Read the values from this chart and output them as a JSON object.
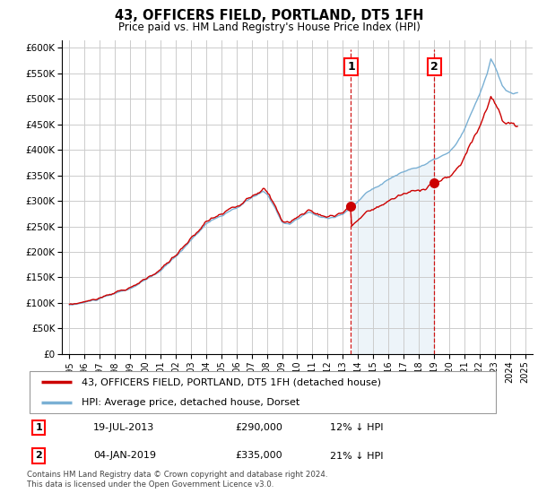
{
  "title": "43, OFFICERS FIELD, PORTLAND, DT5 1FH",
  "subtitle": "Price paid vs. HM Land Registry's House Price Index (HPI)",
  "ylabel_ticks": [
    "£0",
    "£50K",
    "£100K",
    "£150K",
    "£200K",
    "£250K",
    "£300K",
    "£350K",
    "£400K",
    "£450K",
    "£500K",
    "£550K",
    "£600K"
  ],
  "ytick_vals": [
    0,
    50000,
    100000,
    150000,
    200000,
    250000,
    300000,
    350000,
    400000,
    450000,
    500000,
    550000,
    600000
  ],
  "ylim": [
    0,
    615000
  ],
  "xlim_start": 1994.5,
  "xlim_end": 2025.5,
  "hpi_color": "#7ab0d4",
  "hpi_fill_color": "#cce0f0",
  "property_color": "#cc0000",
  "sale1_x": 2013.54,
  "sale1_y": 290000,
  "sale2_x": 2019.01,
  "sale2_y": 335000,
  "legend_property": "43, OFFICERS FIELD, PORTLAND, DT5 1FH (detached house)",
  "legend_hpi": "HPI: Average price, detached house, Dorset",
  "annotation1_label": "1",
  "annotation1_date": "19-JUL-2013",
  "annotation1_price": "£290,000",
  "annotation1_hpi": "12% ↓ HPI",
  "annotation2_label": "2",
  "annotation2_date": "04-JAN-2019",
  "annotation2_price": "£335,000",
  "annotation2_hpi": "21% ↓ HPI",
  "footnote": "Contains HM Land Registry data © Crown copyright and database right 2024.\nThis data is licensed under the Open Government Licence v3.0.",
  "background_color": "#ffffff",
  "grid_color": "#cccccc"
}
